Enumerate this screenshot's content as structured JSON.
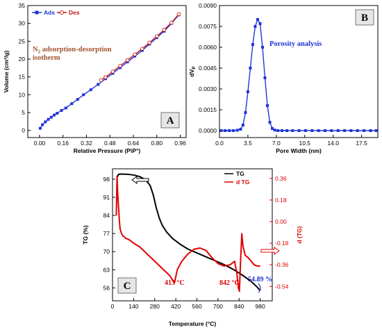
{
  "chart_data": [
    {
      "panel": "A",
      "type": "line",
      "title": "",
      "annotation_main": "N",
      "annotation_sub": "2",
      "annotation_rest": " adsorption-desorption",
      "annotation_line2": "isotherm",
      "xlabel": "Relative Pressure (P\\P°)",
      "ylabel": "Volume (cm³/g)",
      "xlim": [
        -0.08,
        1.0
      ],
      "ylim": [
        -2,
        35
      ],
      "xticks": [
        "0.00",
        "0.16",
        "0.32",
        "0.48",
        "0.64",
        "0.80",
        "0.96"
      ],
      "xtick_values": [
        0.0,
        0.16,
        0.32,
        0.48,
        0.64,
        0.8,
        0.96
      ],
      "yticks": [
        "0",
        "5",
        "10",
        "15",
        "20",
        "25",
        "30",
        "35"
      ],
      "ytick_values": [
        0,
        5,
        10,
        15,
        20,
        25,
        30,
        35
      ],
      "legend_position": "top-left",
      "series": [
        {
          "name": "Ads",
          "color": "#1f35d6",
          "marker": "square-filled",
          "x": [
            0.005,
            0.02,
            0.04,
            0.06,
            0.08,
            0.1,
            0.12,
            0.15,
            0.18,
            0.22,
            0.26,
            0.3,
            0.35,
            0.4,
            0.45,
            0.5,
            0.55,
            0.6,
            0.65,
            0.7,
            0.75,
            0.8,
            0.85,
            0.9,
            0.95
          ],
          "values": [
            0.6,
            1.6,
            2.4,
            3.1,
            3.7,
            4.3,
            4.8,
            5.6,
            6.3,
            7.5,
            8.7,
            10.0,
            11.4,
            12.9,
            14.5,
            16.0,
            17.6,
            19.2,
            20.8,
            22.4,
            24.2,
            26.0,
            27.8,
            30.0,
            32.4
          ]
        },
        {
          "name": "Des",
          "color": "#c01818",
          "marker": "circle-open",
          "x": [
            0.95,
            0.9,
            0.85,
            0.8,
            0.75,
            0.7,
            0.65,
            0.6,
            0.55,
            0.5,
            0.45,
            0.42
          ],
          "values": [
            32.6,
            30.2,
            28.2,
            26.4,
            24.6,
            22.9,
            21.3,
            19.7,
            18.1,
            16.5,
            14.9,
            14.1
          ]
        }
      ]
    },
    {
      "panel": "B",
      "type": "line",
      "title": "",
      "annotation": "Porosity analysis",
      "xlabel": "Pore Width (nm)",
      "ylabel": "dV",
      "ylabel_sub": "P",
      "xlim": [
        0,
        19.5
      ],
      "ylim": [
        -0.0005,
        0.009
      ],
      "xticks": [
        "0.0",
        "3.5",
        "7.0",
        "10.5",
        "14.0",
        "17.5"
      ],
      "xtick_values": [
        0.0,
        3.5,
        7.0,
        10.5,
        14.0,
        17.5
      ],
      "yticks": [
        "0.0000",
        "0.0015",
        "0.0030",
        "0.0045",
        "0.0060",
        "0.0075",
        "0.0090"
      ],
      "ytick_values": [
        0.0,
        0.0015,
        0.003,
        0.0045,
        0.006,
        0.0075,
        0.009
      ],
      "series": [
        {
          "name": "",
          "color": "#1f35d6",
          "marker": "square-filled",
          "x": [
            0.2,
            0.7,
            1.2,
            1.7,
            2.2,
            2.6,
            2.9,
            3.2,
            3.5,
            3.8,
            4.1,
            4.4,
            4.7,
            5.0,
            5.3,
            5.6,
            5.9,
            6.2,
            6.5,
            6.8,
            7.2,
            7.7,
            8.3,
            9.0,
            9.8,
            10.6,
            11.4,
            12.2,
            13.0,
            13.8,
            14.6,
            15.4,
            16.2,
            17.0,
            17.8,
            18.6,
            19.3
          ],
          "values": [
            0.0,
            0.0,
            0.0,
            0.0,
            3e-05,
            0.0001,
            0.0004,
            0.0013,
            0.0028,
            0.0045,
            0.0062,
            0.0075,
            0.008,
            0.0077,
            0.006,
            0.0038,
            0.0018,
            0.0006,
            0.00015,
            4e-05,
            0.0,
            0.0,
            0.0,
            0.0,
            0.0,
            0.0,
            0.0,
            0.0,
            0.0,
            0.0,
            0.0,
            0.0,
            0.0,
            0.0,
            0.0,
            0.0,
            0.0
          ]
        }
      ]
    },
    {
      "panel": "C",
      "type": "line",
      "title": "",
      "xlabel": "Temperature (°C)",
      "ylabel": "TG (%)",
      "ylabel_right": "d (TG)",
      "xlim": [
        0,
        1060
      ],
      "ylim": [
        51,
        102
      ],
      "ylim_right": [
        -0.66,
        0.44
      ],
      "xticks": [
        "0",
        "140",
        "280",
        "420",
        "560",
        "700",
        "840",
        "980"
      ],
      "xtick_values": [
        0,
        140,
        280,
        420,
        560,
        700,
        840,
        980
      ],
      "yticks": [
        "56",
        "63",
        "70",
        "77",
        "84",
        "91",
        "98"
      ],
      "ytick_values": [
        56,
        63,
        70,
        77,
        84,
        91,
        98
      ],
      "yticks_right": [
        "-0.54",
        "-0.36",
        "-0.18",
        "0.00",
        "0.18",
        "0.36"
      ],
      "ytick_values_right": [
        -0.54,
        -0.36,
        -0.18,
        0.0,
        0.18,
        0.36
      ],
      "legend_position": "top-right",
      "annotations": [
        "413 °C",
        "842 °C",
        "54.89 %"
      ],
      "series": [
        {
          "name": "TG",
          "axis": "left",
          "color": "#000000",
          "x": [
            30,
            40,
            60,
            100,
            140,
            180,
            220,
            250,
            270,
            290,
            310,
            330,
            360,
            400,
            450,
            500,
            560,
            620,
            680,
            740,
            800,
            860,
            920,
            960,
            980
          ],
          "values": [
            98.6,
            99.9,
            100.0,
            99.9,
            99.6,
            99.0,
            97.8,
            95.5,
            92.0,
            87.0,
            83.0,
            80.2,
            77.5,
            75.0,
            72.8,
            71.0,
            69.5,
            68.0,
            66.5,
            65.0,
            63.2,
            61.0,
            58.5,
            56.3,
            54.9
          ]
        },
        {
          "name": "d TG",
          "axis": "right",
          "color": "#e00000",
          "x": [
            25,
            30,
            35,
            40,
            45,
            50,
            60,
            70,
            90,
            110,
            140,
            180,
            230,
            280,
            330,
            380,
            400,
            410,
            413,
            418,
            430,
            460,
            500,
            540,
            580,
            620,
            660,
            700,
            740,
            780,
            810,
            825,
            835,
            842,
            850,
            858,
            865,
            880,
            900,
            920,
            940,
            960,
            980
          ],
          "values": [
            0.05,
            0.38,
            0.22,
            0.12,
            0.02,
            -0.06,
            -0.1,
            -0.12,
            -0.14,
            -0.15,
            -0.18,
            -0.21,
            -0.27,
            -0.33,
            -0.39,
            -0.45,
            -0.49,
            -0.51,
            -0.5,
            -0.47,
            -0.4,
            -0.33,
            -0.27,
            -0.23,
            -0.22,
            -0.24,
            -0.3,
            -0.35,
            -0.37,
            -0.36,
            -0.33,
            -0.43,
            -0.55,
            -0.58,
            -0.32,
            -0.1,
            -0.2,
            -0.28,
            -0.3,
            -0.33,
            -0.36,
            -0.37,
            -0.37
          ]
        }
      ]
    }
  ],
  "panels": {
    "a": {
      "letter": "A"
    },
    "b": {
      "letter": "B"
    },
    "c": {
      "letter": "C"
    }
  },
  "colors": {
    "blue": "#1f35d6",
    "red": "#e00000",
    "dark_red": "#c01818",
    "brown_text": "#a0522d"
  }
}
